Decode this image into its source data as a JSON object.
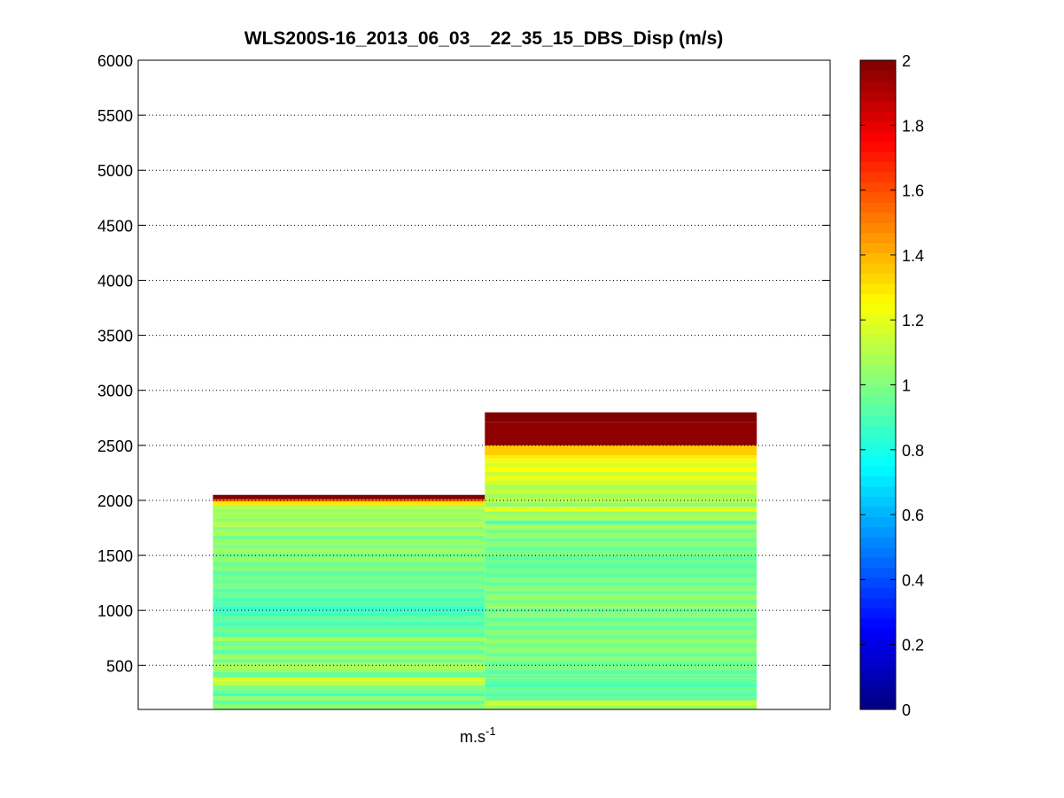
{
  "window": {
    "background": "#ffffff"
  },
  "chart_data": {
    "type": "heatmap",
    "title": "WLS200S-16_2013_06_03__22_35_15_DBS_Disp (m/s)",
    "xlabel": "m.s",
    "xlabel_sup": "-1",
    "ylabel": "",
    "ylim": [
      100,
      6000
    ],
    "yticks": [
      500,
      1000,
      1500,
      2000,
      2500,
      3000,
      3500,
      4000,
      4500,
      5000,
      5500,
      6000
    ],
    "grid": "horizontal dotted",
    "colormap": "jet",
    "colorbar": {
      "clim": [
        0,
        2
      ],
      "ticks": [
        0,
        0.2,
        0.4,
        0.6,
        0.8,
        1,
        1.2,
        1.4,
        1.6,
        1.8,
        2
      ],
      "placement": "right"
    },
    "columns": [
      {
        "x_index": 1,
        "height_start": 100,
        "height_step": 20,
        "segments": [
          {
            "to": 150,
            "value": 1.02
          },
          {
            "to": 180,
            "value": 0.92
          },
          {
            "to": 220,
            "value": 1.05
          },
          {
            "to": 250,
            "value": 0.88
          },
          {
            "to": 280,
            "value": 0.97
          },
          {
            "to": 320,
            "value": 1.0
          },
          {
            "to": 360,
            "value": 1.12
          },
          {
            "to": 390,
            "value": 1.18
          },
          {
            "to": 440,
            "value": 0.95
          },
          {
            "to": 470,
            "value": 1.05
          },
          {
            "to": 520,
            "value": 1.08
          },
          {
            "to": 560,
            "value": 0.98
          },
          {
            "to": 600,
            "value": 1.06
          },
          {
            "to": 640,
            "value": 0.93
          },
          {
            "to": 680,
            "value": 1.02
          },
          {
            "to": 720,
            "value": 0.96
          },
          {
            "to": 760,
            "value": 1.08
          },
          {
            "to": 800,
            "value": 0.92
          },
          {
            "to": 850,
            "value": 0.97
          },
          {
            "to": 900,
            "value": 0.9
          },
          {
            "to": 950,
            "value": 0.94
          },
          {
            "to": 1000,
            "value": 0.88
          },
          {
            "to": 1040,
            "value": 0.85
          },
          {
            "to": 1080,
            "value": 0.92
          },
          {
            "to": 1120,
            "value": 0.9
          },
          {
            "to": 1160,
            "value": 0.96
          },
          {
            "to": 1200,
            "value": 0.92
          },
          {
            "to": 1240,
            "value": 1.0
          },
          {
            "to": 1280,
            "value": 0.95
          },
          {
            "to": 1320,
            "value": 0.98
          },
          {
            "to": 1360,
            "value": 0.93
          },
          {
            "to": 1400,
            "value": 1.02
          },
          {
            "to": 1440,
            "value": 0.96
          },
          {
            "to": 1480,
            "value": 1.04
          },
          {
            "to": 1520,
            "value": 0.98
          },
          {
            "to": 1560,
            "value": 1.06
          },
          {
            "to": 1600,
            "value": 1.0
          },
          {
            "to": 1640,
            "value": 1.05
          },
          {
            "to": 1680,
            "value": 0.97
          },
          {
            "to": 1720,
            "value": 1.08
          },
          {
            "to": 1760,
            "value": 1.02
          },
          {
            "to": 1800,
            "value": 1.1
          },
          {
            "to": 1840,
            "value": 1.04
          },
          {
            "to": 1880,
            "value": 1.08
          },
          {
            "to": 1920,
            "value": 1.05
          },
          {
            "to": 1960,
            "value": 1.1
          },
          {
            "to": 1990,
            "value": 1.3
          },
          {
            "to": 2010,
            "value": 1.55
          },
          {
            "to": 2050,
            "value": 2.0
          }
        ]
      },
      {
        "x_index": 2,
        "height_start": 100,
        "height_step": 20,
        "segments": [
          {
            "to": 140,
            "value": 1.05
          },
          {
            "to": 180,
            "value": 1.15
          },
          {
            "to": 220,
            "value": 0.95
          },
          {
            "to": 260,
            "value": 0.92
          },
          {
            "to": 300,
            "value": 0.96
          },
          {
            "to": 340,
            "value": 0.9
          },
          {
            "to": 380,
            "value": 0.94
          },
          {
            "to": 420,
            "value": 0.97
          },
          {
            "to": 460,
            "value": 0.92
          },
          {
            "to": 500,
            "value": 1.0
          },
          {
            "to": 540,
            "value": 0.95
          },
          {
            "to": 580,
            "value": 1.02
          },
          {
            "to": 620,
            "value": 0.96
          },
          {
            "to": 660,
            "value": 1.03
          },
          {
            "to": 700,
            "value": 0.98
          },
          {
            "to": 740,
            "value": 1.04
          },
          {
            "to": 780,
            "value": 0.97
          },
          {
            "to": 820,
            "value": 1.02
          },
          {
            "to": 860,
            "value": 0.95
          },
          {
            "to": 900,
            "value": 1.0
          },
          {
            "to": 940,
            "value": 0.94
          },
          {
            "to": 980,
            "value": 1.02
          },
          {
            "to": 1020,
            "value": 0.96
          },
          {
            "to": 1060,
            "value": 1.04
          },
          {
            "to": 1100,
            "value": 0.98
          },
          {
            "to": 1140,
            "value": 1.05
          },
          {
            "to": 1180,
            "value": 0.97
          },
          {
            "to": 1220,
            "value": 1.02
          },
          {
            "to": 1260,
            "value": 0.95
          },
          {
            "to": 1300,
            "value": 1.0
          },
          {
            "to": 1340,
            "value": 0.93
          },
          {
            "to": 1380,
            "value": 0.98
          },
          {
            "to": 1420,
            "value": 0.92
          },
          {
            "to": 1460,
            "value": 0.97
          },
          {
            "to": 1500,
            "value": 0.94
          },
          {
            "to": 1540,
            "value": 1.0
          },
          {
            "to": 1580,
            "value": 0.95
          },
          {
            "to": 1620,
            "value": 1.02
          },
          {
            "to": 1660,
            "value": 0.96
          },
          {
            "to": 1700,
            "value": 1.05
          },
          {
            "to": 1740,
            "value": 0.98
          },
          {
            "to": 1780,
            "value": 1.08
          },
          {
            "to": 1820,
            "value": 0.92
          },
          {
            "to": 1860,
            "value": 1.1
          },
          {
            "to": 1900,
            "value": 1.04
          },
          {
            "to": 1940,
            "value": 1.2
          },
          {
            "to": 1980,
            "value": 1.02
          },
          {
            "to": 2020,
            "value": 1.12
          },
          {
            "to": 2060,
            "value": 1.06
          },
          {
            "to": 2100,
            "value": 1.14
          },
          {
            "to": 2140,
            "value": 1.08
          },
          {
            "to": 2180,
            "value": 1.16
          },
          {
            "to": 2220,
            "value": 1.22
          },
          {
            "to": 2260,
            "value": 1.15
          },
          {
            "to": 2300,
            "value": 1.25
          },
          {
            "to": 2340,
            "value": 1.18
          },
          {
            "to": 2380,
            "value": 1.22
          },
          {
            "to": 2410,
            "value": 1.28
          },
          {
            "to": 2500,
            "value": 1.35
          },
          {
            "to": 2710,
            "value": 1.97
          },
          {
            "to": 2800,
            "value": 2.0
          }
        ]
      }
    ]
  }
}
